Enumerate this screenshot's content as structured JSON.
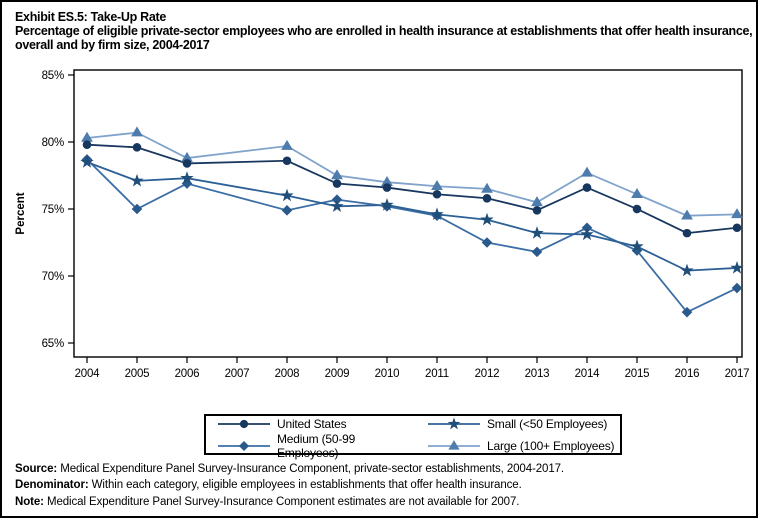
{
  "chart_data": {
    "type": "line",
    "title": "Exhibit ES.5: Take-Up Rate",
    "subtitle": "Percentage of eligible private-sector employees who are enrolled in health insurance at establishments that offer health insurance, overall and by firm size, 2004-2017",
    "xlabel": "",
    "ylabel": "Percent",
    "x": [
      2004,
      2005,
      2006,
      2007,
      2008,
      2009,
      2010,
      2011,
      2012,
      2013,
      2014,
      2015,
      2016,
      2017
    ],
    "ylim": [
      65,
      85
    ],
    "ytick_labels": [
      "65%",
      "70%",
      "75%",
      "80%",
      "85%"
    ],
    "grid": false,
    "legend_position": "bottom-boxed",
    "missing_data_year": 2007,
    "series": [
      {
        "name": "United States",
        "marker": "circle",
        "line_color": "#17375E",
        "marker_color": "#17375E",
        "values": [
          79.8,
          79.6,
          78.4,
          null,
          78.6,
          76.9,
          76.6,
          76.1,
          75.8,
          74.9,
          76.6,
          75.0,
          73.2,
          73.6
        ]
      },
      {
        "name": "Small (<50 Employees)",
        "marker": "star",
        "line_color": "#2D6096",
        "marker_color": "#1F4E79",
        "values": [
          78.5,
          77.1,
          77.3,
          null,
          76.0,
          75.2,
          75.3,
          74.6,
          74.2,
          73.2,
          73.1,
          72.2,
          70.4,
          70.6
        ]
      },
      {
        "name": "Medium (50-99 Employees)",
        "marker": "diamond",
        "line_color": "#3B6EA5",
        "marker_color": "#2A5A8C",
        "values": [
          78.7,
          75.0,
          76.9,
          null,
          74.9,
          75.7,
          75.2,
          74.5,
          72.5,
          71.8,
          73.6,
          71.9,
          67.3,
          69.1
        ]
      },
      {
        "name": "Large (100+ Employees)",
        "marker": "triangle",
        "line_color": "#7FA3CB",
        "marker_color": "#4D7CAD",
        "values": [
          80.3,
          80.7,
          78.8,
          null,
          79.7,
          77.5,
          77.0,
          76.7,
          76.5,
          75.5,
          77.7,
          76.1,
          74.5,
          74.6
        ]
      }
    ]
  },
  "legend": {
    "display_order": [
      0,
      1,
      2,
      3
    ]
  },
  "footer": {
    "lines": [
      {
        "label": "Source:",
        "text": " Medical Expenditure Panel Survey-Insurance Component, private-sector establishments, 2004-2017."
      },
      {
        "label": "Denominator:",
        "text": " Within each category, eligible employees in establishments that offer health insurance."
      },
      {
        "label": "Note:",
        "text": " Medical Expenditure Panel Survey-Insurance Component estimates are not available for 2007."
      }
    ]
  }
}
